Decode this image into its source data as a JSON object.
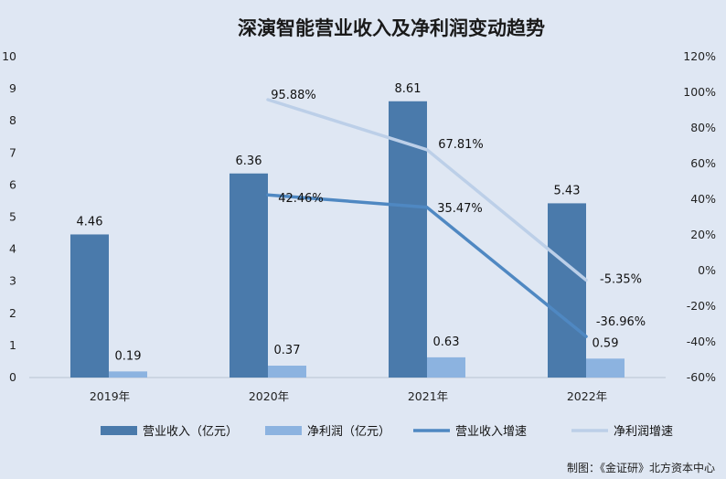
{
  "chart_data": {
    "type": "bar",
    "title": "深演智能营业收入及净利润变动趋势",
    "categories": [
      "2019年",
      "2020年",
      "2021年",
      "2022年"
    ],
    "series": [
      {
        "name": "营业收入（亿元）",
        "kind": "bar",
        "axis": "left",
        "color": "#4a7aab",
        "values": [
          4.46,
          6.36,
          8.61,
          5.43
        ],
        "labels": [
          "4.46",
          "6.36",
          "8.61",
          "5.43"
        ]
      },
      {
        "name": "净利润（亿元）",
        "kind": "bar",
        "axis": "left",
        "color": "#8cb3e0",
        "values": [
          0.19,
          0.37,
          0.63,
          0.59
        ],
        "labels": [
          "0.19",
          "0.37",
          "0.63",
          "0.59"
        ]
      },
      {
        "name": "营业收入增速",
        "kind": "line",
        "axis": "right",
        "color": "#4f88c2",
        "values": [
          null,
          42.46,
          35.47,
          -36.96
        ],
        "labels": [
          "",
          "42.46%",
          "35.47%",
          "-36.96%"
        ]
      },
      {
        "name": "净利润增速",
        "kind": "line",
        "axis": "right",
        "color": "#bccfe8",
        "values": [
          null,
          95.88,
          67.81,
          -5.35
        ],
        "labels": [
          "",
          "95.88%",
          "67.81%",
          "-5.35%"
        ]
      }
    ],
    "y_left": {
      "min": 0,
      "max": 10,
      "ticks": [
        "0",
        "1",
        "2",
        "3",
        "4",
        "5",
        "6",
        "7",
        "8",
        "9",
        "10"
      ]
    },
    "y_right": {
      "min": -60,
      "max": 120,
      "ticks": [
        "-60%",
        "-40%",
        "-20%",
        "0%",
        "20%",
        "40%",
        "60%",
        "80%",
        "100%",
        "120%"
      ]
    },
    "legend_position": "bottom",
    "grid": false
  },
  "credit": "制图：《金证研》北方资本中心"
}
